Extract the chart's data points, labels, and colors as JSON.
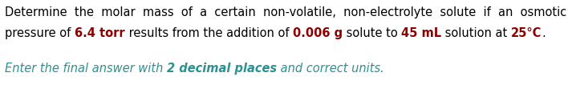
{
  "line1": "Determine  the  molar  mass  of  a  certain  non-volatile,  non-electrolyte  solute  if  an  osmotic",
  "line2_parts": [
    {
      "text": "pressure of ",
      "bold": false,
      "color": "#000000"
    },
    {
      "text": "6.4 torr",
      "bold": true,
      "color": "#8B0000"
    },
    {
      "text": " results from the addition of ",
      "bold": false,
      "color": "#000000"
    },
    {
      "text": "0.006 g",
      "bold": true,
      "color": "#8B0000"
    },
    {
      "text": " solute to ",
      "bold": false,
      "color": "#000000"
    },
    {
      "text": "45 mL",
      "bold": true,
      "color": "#8B0000"
    },
    {
      "text": " solution at ",
      "bold": false,
      "color": "#000000"
    },
    {
      "text": "25°C",
      "bold": true,
      "color": "#8B0000"
    },
    {
      "text": ".",
      "bold": false,
      "color": "#000000"
    }
  ],
  "line3_parts": [
    {
      "text": "Enter the final answer with ",
      "bold": false,
      "color": "#2E9090"
    },
    {
      "text": "2 decimal places",
      "bold": true,
      "color": "#2E9090"
    },
    {
      "text": " and correct units.",
      "bold": false,
      "color": "#2E9090"
    }
  ],
  "fontsize": 10.5,
  "bg_color": "#ffffff",
  "line1_color": "#000000",
  "figsize": [
    7.08,
    1.06
  ],
  "dpi": 100
}
